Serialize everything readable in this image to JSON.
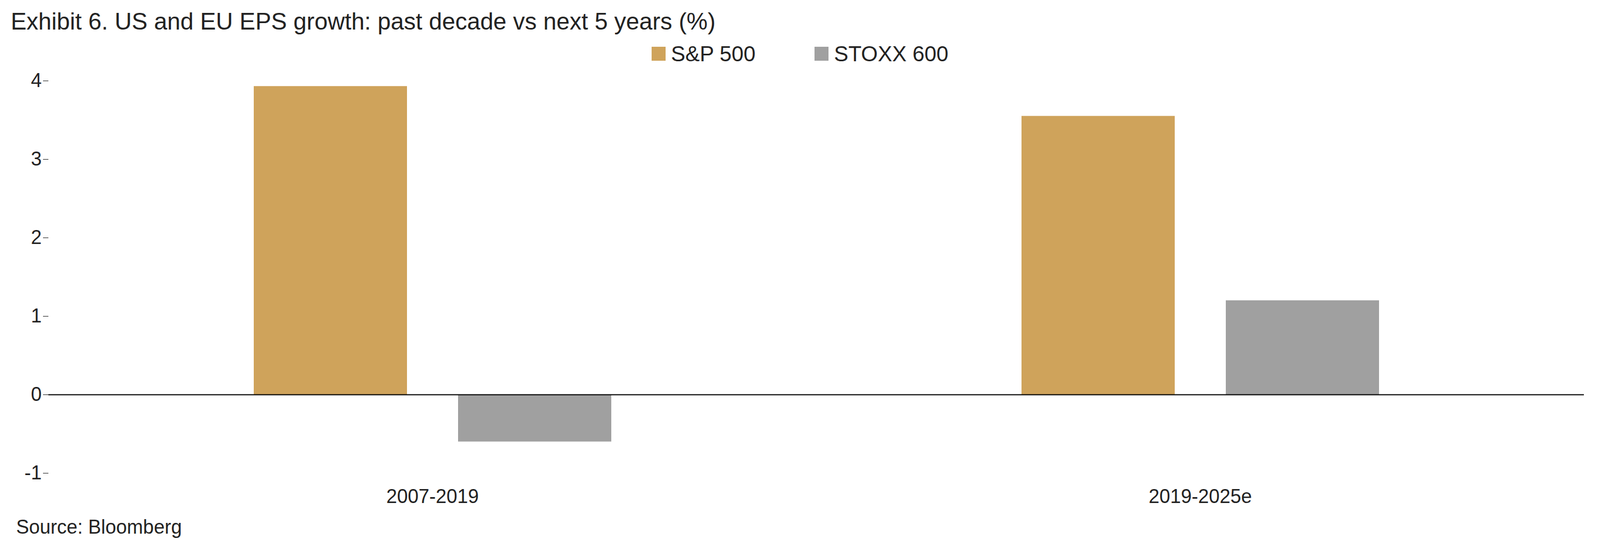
{
  "chart_data": {
    "type": "bar",
    "title": "Exhibit 6. US and EU EPS growth: past decade vs next 5 years (%)",
    "caption": "Source: Bloomberg",
    "categories": [
      "2007-2019",
      "2019-2025e"
    ],
    "series": [
      {
        "name": "S&P 500",
        "color": "#cfa35b",
        "values": [
          3.93,
          3.55
        ]
      },
      {
        "name": "STOXX 600",
        "color": "#a0a0a0",
        "values": [
          -0.6,
          1.2
        ]
      }
    ],
    "ylim": [
      -1,
      4
    ],
    "yticks": [
      -1,
      0,
      1,
      2,
      3,
      4
    ],
    "grid": false,
    "legend": "top"
  }
}
